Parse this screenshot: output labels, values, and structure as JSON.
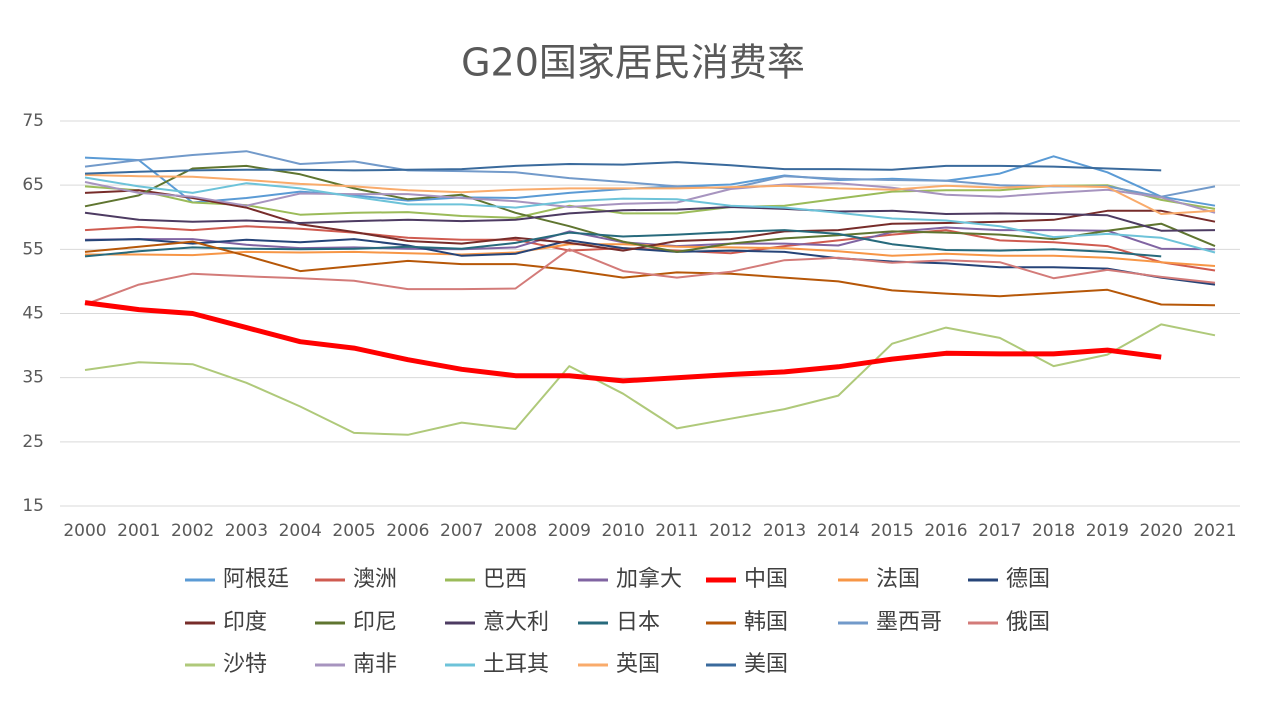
{
  "chart_data": {
    "type": "line",
    "title": "G20国家居民消费率",
    "categories": [
      "2000",
      "2001",
      "2002",
      "2003",
      "2004",
      "2005",
      "2006",
      "2007",
      "2008",
      "2009",
      "2010",
      "2011",
      "2012",
      "2013",
      "2014",
      "2015",
      "2016",
      "2017",
      "2018",
      "2019",
      "2020",
      "2021"
    ],
    "ylim": [
      15,
      75
    ],
    "yticks": [
      15,
      25,
      35,
      45,
      55,
      65,
      75
    ],
    "grid": true,
    "series": [
      {
        "name": "阿根廷",
        "color": "#5b9bd5",
        "values": [
          69.3,
          68.9,
          62.3,
          63.0,
          64.0,
          63.4,
          62.6,
          63.1,
          63.0,
          63.8,
          64.4,
          64.8,
          65.1,
          66.5,
          65.8,
          66.0,
          65.7,
          66.8,
          69.5,
          67.0,
          63.2,
          61.8
        ]
      },
      {
        "name": "澳洲",
        "color": "#cf5b50",
        "values": [
          58.0,
          58.5,
          58.0,
          58.6,
          58.2,
          57.6,
          56.8,
          56.5,
          56.5,
          54.8,
          55.2,
          54.8,
          54.4,
          55.5,
          56.4,
          57.3,
          58.0,
          56.4,
          56.1,
          55.5,
          53.0,
          51.7
        ]
      },
      {
        "name": "巴西",
        "color": "#9bbb59",
        "values": [
          64.8,
          64.2,
          62.3,
          61.9,
          60.4,
          60.7,
          60.8,
          60.2,
          59.9,
          61.8,
          60.6,
          60.6,
          61.6,
          61.8,
          62.9,
          64.0,
          64.2,
          64.2,
          64.9,
          65.0,
          62.7,
          61.3
        ]
      },
      {
        "name": "加拿大",
        "color": "#8064a2",
        "values": [
          56.5,
          56.6,
          56.6,
          55.7,
          55.2,
          55.3,
          55.1,
          55.0,
          55.3,
          57.8,
          56.1,
          55.5,
          55.9,
          55.9,
          55.6,
          57.7,
          58.4,
          58.0,
          58.0,
          57.9,
          55.1,
          55.0
        ]
      },
      {
        "name": "中国",
        "color": "#ff0000",
        "values": [
          46.7,
          45.6,
          45.0,
          42.8,
          40.6,
          39.6,
          37.8,
          36.3,
          35.3,
          35.3,
          34.5,
          35.0,
          35.5,
          35.9,
          36.7,
          37.9,
          38.8,
          38.7,
          38.7,
          39.3,
          38.2,
          null
        ]
      },
      {
        "name": "法国",
        "color": "#f79646",
        "values": [
          54.2,
          54.2,
          54.1,
          54.6,
          54.5,
          54.6,
          54.4,
          54.2,
          54.5,
          55.8,
          55.8,
          55.4,
          55.3,
          55.2,
          54.7,
          54.0,
          54.3,
          54.0,
          54.0,
          53.7,
          53.0,
          52.4
        ]
      },
      {
        "name": "德国",
        "color": "#264478",
        "values": [
          56.4,
          56.6,
          55.9,
          56.5,
          56.1,
          56.6,
          55.6,
          54.0,
          54.3,
          56.4,
          55.2,
          54.6,
          54.8,
          54.6,
          53.6,
          53.1,
          52.8,
          52.2,
          52.2,
          52.0,
          50.6,
          49.5
        ]
      },
      {
        "name": "印度",
        "color": "#772c2a",
        "values": [
          63.8,
          64.2,
          63.0,
          61.5,
          58.9,
          57.7,
          56.3,
          55.9,
          56.8,
          56.0,
          54.8,
          56.3,
          56.6,
          57.8,
          58.0,
          59.0,
          59.1,
          59.3,
          59.6,
          61.0,
          61.0,
          59.3
        ]
      },
      {
        "name": "印尼",
        "color": "#5f7530",
        "values": [
          61.7,
          63.4,
          67.6,
          68.0,
          66.7,
          64.5,
          62.8,
          63.5,
          60.7,
          58.6,
          56.2,
          54.6,
          55.9,
          56.7,
          57.2,
          57.8,
          57.6,
          57.3,
          56.6,
          57.9,
          59.0,
          55.5
        ]
      },
      {
        "name": "意大利",
        "color": "#4d3b62",
        "values": [
          60.7,
          59.6,
          59.3,
          59.5,
          59.1,
          59.4,
          59.6,
          59.4,
          59.6,
          60.6,
          61.1,
          61.2,
          61.6,
          61.3,
          60.9,
          61.0,
          60.5,
          60.6,
          60.5,
          60.3,
          57.9,
          58.0
        ]
      },
      {
        "name": "日本",
        "color": "#276a7c",
        "values": [
          53.9,
          54.7,
          55.3,
          55.1,
          55.0,
          55.1,
          55.4,
          55.1,
          56.0,
          57.6,
          57.0,
          57.3,
          57.7,
          58.0,
          57.4,
          55.8,
          54.9,
          54.8,
          55.0,
          54.6,
          53.9,
          null
        ]
      },
      {
        "name": "韩国",
        "color": "#b65708",
        "values": [
          54.6,
          55.4,
          56.2,
          54.0,
          51.6,
          52.4,
          53.2,
          52.7,
          52.7,
          51.8,
          50.6,
          51.4,
          51.2,
          50.6,
          50.0,
          48.6,
          48.1,
          47.7,
          48.2,
          48.7,
          46.4,
          46.3
        ]
      },
      {
        "name": "墨西哥",
        "color": "#729aca",
        "values": [
          67.9,
          68.9,
          69.7,
          70.3,
          68.3,
          68.7,
          67.3,
          67.2,
          67.0,
          66.1,
          65.5,
          64.8,
          64.5,
          66.4,
          66.0,
          65.8,
          65.7,
          65.0,
          64.8,
          64.8,
          63.2,
          64.8
        ]
      },
      {
        "name": "俄国",
        "color": "#d37b79",
        "values": [
          46.4,
          49.5,
          51.2,
          50.8,
          50.5,
          50.1,
          48.8,
          48.8,
          48.9,
          55.0,
          51.6,
          50.6,
          51.5,
          53.3,
          53.7,
          52.9,
          53.3,
          53.0,
          50.5,
          51.8,
          50.7,
          49.8
        ]
      },
      {
        "name": "沙特",
        "color": "#afc97a",
        "values": [
          36.2,
          37.4,
          37.1,
          34.2,
          30.5,
          26.4,
          26.1,
          28.0,
          27.0,
          36.8,
          32.5,
          27.1,
          28.6,
          30.1,
          32.2,
          40.3,
          42.8,
          41.2,
          36.8,
          38.6,
          43.3,
          41.6
        ]
      },
      {
        "name": "南非",
        "color": "#a794bf",
        "values": [
          65.5,
          63.8,
          63.2,
          61.8,
          63.7,
          63.6,
          63.6,
          63.0,
          62.5,
          61.6,
          62.1,
          62.3,
          64.4,
          65.1,
          65.3,
          64.6,
          63.5,
          63.2,
          63.8,
          64.3,
          63.1,
          60.7
        ]
      },
      {
        "name": "土耳其",
        "color": "#6dc3d9",
        "values": [
          66.2,
          64.8,
          63.8,
          65.3,
          64.5,
          63.2,
          62.0,
          62.0,
          61.5,
          62.5,
          62.9,
          62.8,
          61.8,
          61.5,
          60.7,
          59.8,
          59.5,
          58.6,
          56.9,
          57.4,
          56.8,
          54.5
        ]
      },
      {
        "name": "英国",
        "color": "#f9ab6b",
        "values": [
          66.6,
          66.4,
          66.3,
          65.8,
          65.2,
          64.8,
          64.2,
          63.9,
          64.3,
          64.5,
          64.5,
          64.5,
          64.7,
          64.9,
          64.5,
          64.3,
          64.9,
          64.6,
          64.9,
          64.7,
          60.5,
          61.0
        ]
      },
      {
        "name": "美国",
        "color": "#3a6a9c",
        "values": [
          66.8,
          67.1,
          67.3,
          67.4,
          67.4,
          67.3,
          67.4,
          67.5,
          68.0,
          68.3,
          68.2,
          68.6,
          68.1,
          67.5,
          67.5,
          67.4,
          68.0,
          68.0,
          67.9,
          67.6,
          67.3,
          null
        ]
      }
    ]
  }
}
